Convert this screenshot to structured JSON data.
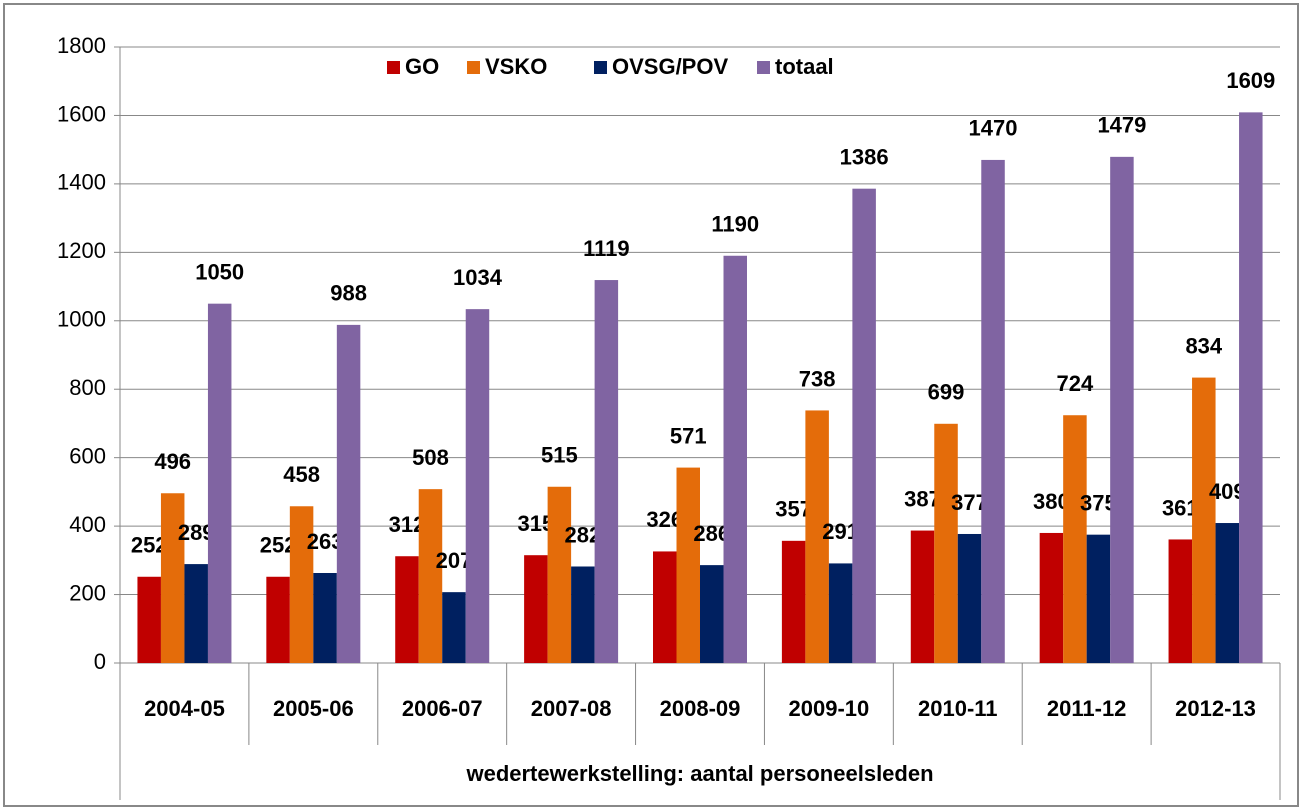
{
  "chart_data": {
    "type": "bar",
    "x_label": "wedertewerkstelling: aantal personeelsleden",
    "categories": [
      "2004-05",
      "2005-06",
      "2006-07",
      "2007-08",
      "2008-09",
      "2009-10",
      "2010-11",
      "2011-12",
      "2012-13"
    ],
    "series": [
      {
        "name": "GO",
        "color": "#c00000",
        "values": [
          252,
          252,
          312,
          315,
          326,
          357,
          387,
          380,
          361
        ]
      },
      {
        "name": "VSKO",
        "color": "#e46c0a",
        "values": [
          496,
          458,
          508,
          515,
          571,
          738,
          699,
          724,
          834
        ]
      },
      {
        "name": "OVSG/POV",
        "color": "#002060",
        "values": [
          289,
          263,
          207,
          282,
          286,
          291,
          377,
          375,
          409
        ]
      },
      {
        "name": "totaal",
        "color": "#8064a2",
        "values": [
          1050,
          988,
          1034,
          1119,
          1190,
          1386,
          1470,
          1479,
          1609
        ]
      }
    ],
    "ylim": [
      0,
      1800
    ],
    "yticks": [
      0,
      200,
      400,
      600,
      800,
      1000,
      1200,
      1400,
      1600,
      1800
    ],
    "grid": true,
    "legend": "top"
  }
}
